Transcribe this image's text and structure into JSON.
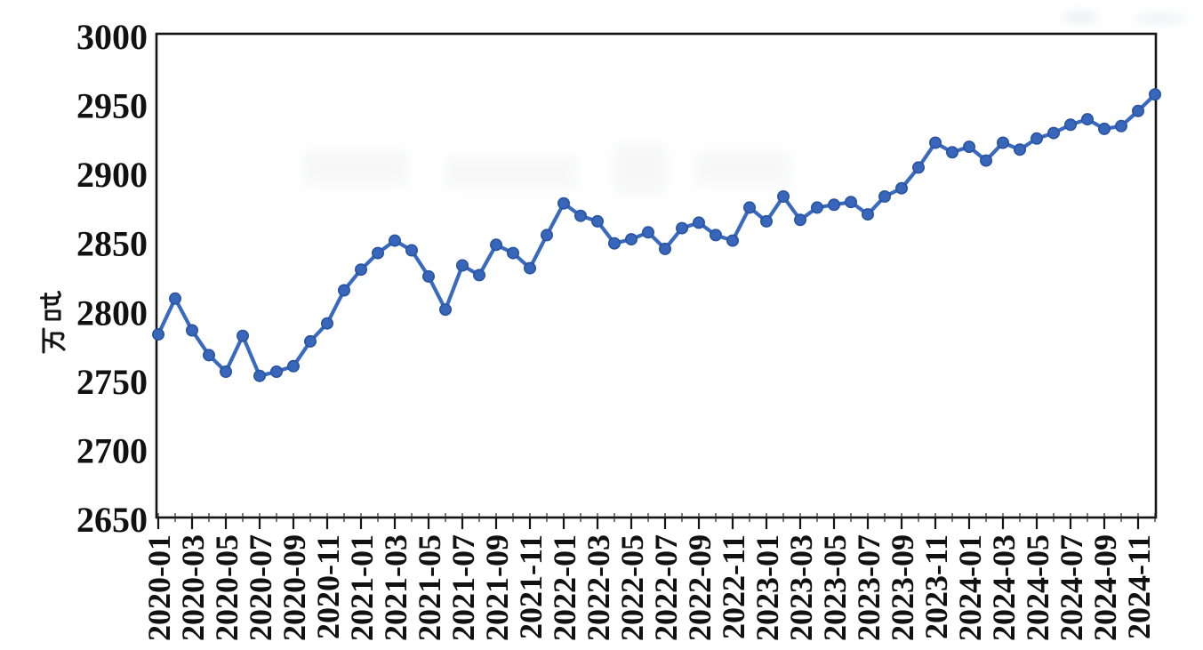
{
  "page": {
    "background": "#ffffff",
    "description_title": "月度产量折线图"
  },
  "chart_data": {
    "type": "line",
    "title": "",
    "xlabel": "",
    "ylabel": "万吨",
    "ylim": [
      2650,
      3000
    ],
    "y_ticks": [
      3000,
      2950,
      2900,
      2850,
      2800,
      2750,
      2700,
      2650
    ],
    "grid": false,
    "legend": "none",
    "marker": "circle",
    "line_color": "#3a6abf",
    "marker_fill": "#3766bb",
    "marker_edge": "#2a539f",
    "axis_color": "#141414",
    "tick_label_color": "#111111",
    "x_tick_labels": [
      "2020-01",
      "2020-03",
      "2020-05",
      "2020-07",
      "2020-09",
      "2020-11",
      "2021-01",
      "2021-03",
      "2021-05",
      "2021-07",
      "2021-09",
      "2021-11",
      "2022-01",
      "2022-03",
      "2022-05",
      "2022-07",
      "2022-09",
      "2022-11",
      "2023-01",
      "2023-03",
      "2023-05",
      "2023-07",
      "2023-09",
      "2023-11",
      "2024-01",
      "2024-03",
      "2024-05",
      "2024-07",
      "2024-09",
      "2024-11"
    ],
    "x": [
      "2020-01",
      "2020-02",
      "2020-03",
      "2020-04",
      "2020-05",
      "2020-06",
      "2020-07",
      "2020-08",
      "2020-09",
      "2020-10",
      "2020-11",
      "2020-12",
      "2021-01",
      "2021-02",
      "2021-03",
      "2021-04",
      "2021-05",
      "2021-06",
      "2021-07",
      "2021-08",
      "2021-09",
      "2021-10",
      "2021-11",
      "2021-12",
      "2022-01",
      "2022-02",
      "2022-03",
      "2022-04",
      "2022-05",
      "2022-06",
      "2022-07",
      "2022-08",
      "2022-09",
      "2022-10",
      "2022-11",
      "2022-12",
      "2023-01",
      "2023-02",
      "2023-03",
      "2023-04",
      "2023-05",
      "2023-06",
      "2023-07",
      "2023-08",
      "2023-09",
      "2023-10",
      "2023-11",
      "2023-12",
      "2024-01",
      "2024-02",
      "2024-03",
      "2024-04",
      "2024-05",
      "2024-06",
      "2024-07",
      "2024-08",
      "2024-09",
      "2024-10",
      "2024-11",
      "2024-12"
    ],
    "values": [
      2784,
      2810,
      2787,
      2769,
      2757,
      2783,
      2754,
      2757,
      2761,
      2779,
      2792,
      2816,
      2831,
      2843,
      2852,
      2845,
      2826,
      2802,
      2834,
      2827,
      2849,
      2843,
      2832,
      2856,
      2879,
      2870,
      2866,
      2850,
      2853,
      2858,
      2846,
      2861,
      2865,
      2856,
      2852,
      2876,
      2866,
      2884,
      2867,
      2876,
      2878,
      2880,
      2871,
      2884,
      2890,
      2905,
      2923,
      2916,
      2920,
      2910,
      2923,
      2918,
      2926,
      2930,
      2936,
      2940,
      2933,
      2935,
      2946,
      2958
    ]
  }
}
